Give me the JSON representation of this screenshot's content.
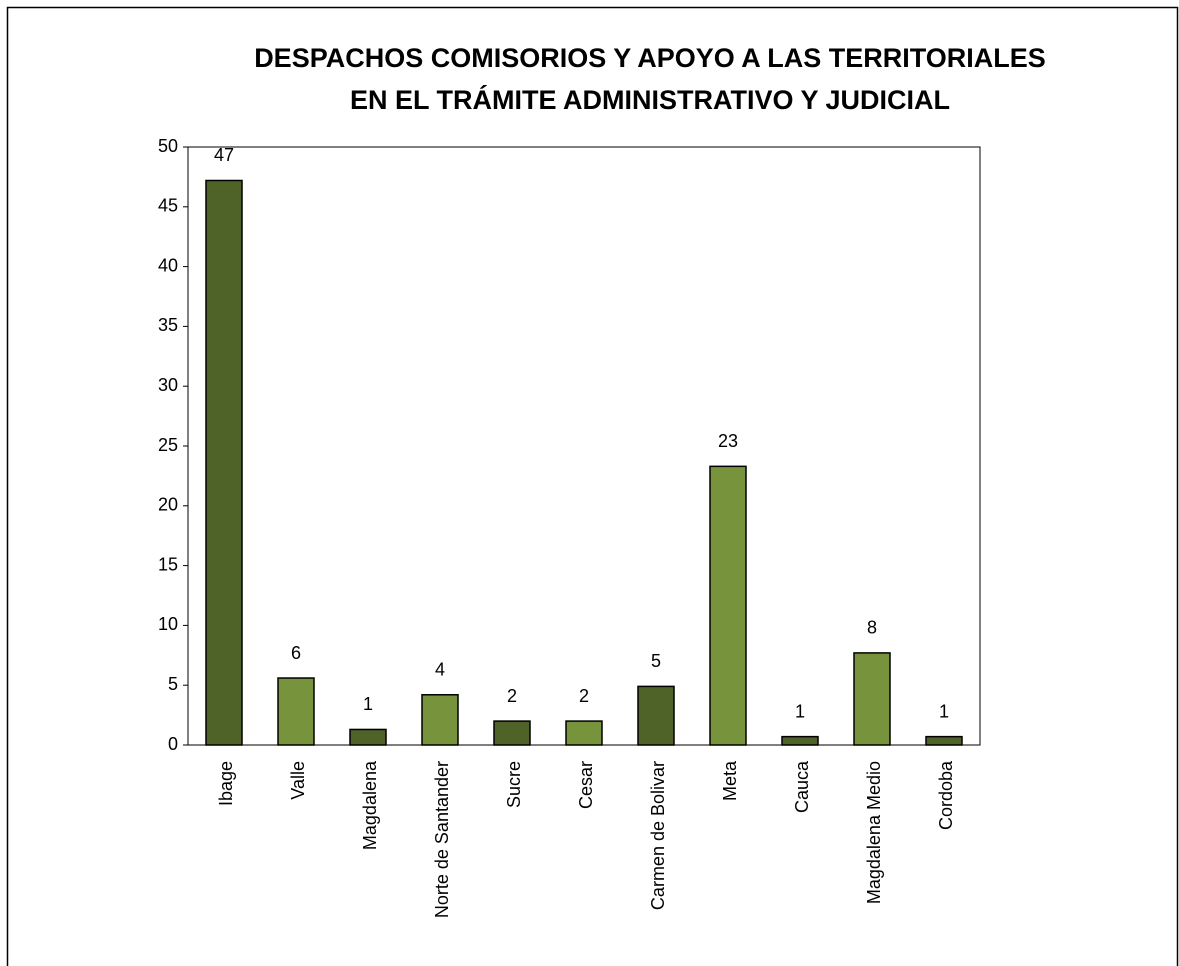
{
  "chart_data": {
    "type": "bar",
    "title": [
      "DESPACHOS COMISORIOS Y APOYO A LAS TERRITORIALES",
      "EN EL TRÁMITE ADMINISTRATIVO Y JUDICIAL"
    ],
    "categories": [
      "Ibage",
      "Valle",
      "Magdalena",
      "Norte de Santander",
      "Sucre",
      "Cesar",
      "Carmen de Bolivar",
      "Meta",
      "Cauca",
      "Magdalena Medio",
      "Cordoba"
    ],
    "values": [
      47.2,
      5.6,
      1.3,
      4.2,
      2,
      2,
      4.9,
      23.3,
      0.7,
      7.7,
      0.7
    ],
    "value_labels": [
      "47",
      "6",
      "1",
      "4",
      "2",
      "2",
      "5",
      "23",
      "1",
      "8",
      "1"
    ],
    "colors": [
      "#4f6228",
      "#77933c",
      "#4f6228",
      "#77933c",
      "#4f6228",
      "#77933c",
      "#4f6228",
      "#77933c",
      "#4f6228",
      "#77933c",
      "#4f6228"
    ],
    "ylim": [
      0,
      50
    ],
    "yticks": [
      0,
      5,
      10,
      15,
      20,
      25,
      30,
      35,
      40,
      45,
      50
    ],
    "grid": false
  }
}
